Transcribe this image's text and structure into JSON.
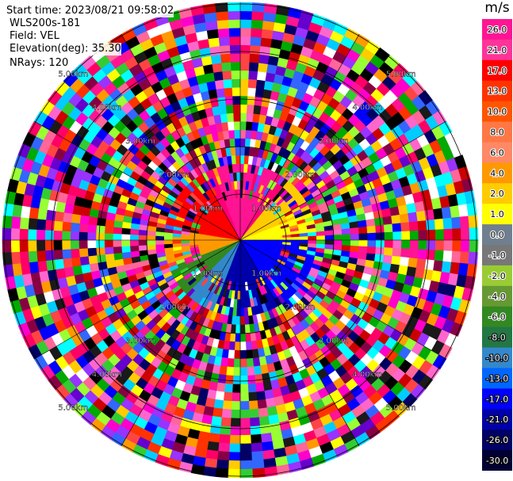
{
  "header": {
    "start_time": "Start time: 2023/08/21 09:58:02",
    "instrument": "WLS200s-181",
    "field": "Field: VEL",
    "elevation": "Elevation(deg): 35.30",
    "nrays": "NRays: 120"
  },
  "colorbar": {
    "unit": "m/s",
    "ticks": [
      "26.0",
      "21.0",
      "17.0",
      "13.0",
      "10.0",
      "8.0",
      "6.0",
      "4.0",
      "2.0",
      "1.0",
      "0.0",
      "-1.0",
      "-2.0",
      "-4.0",
      "-6.0",
      "-8.0",
      "-10.0",
      "-13.0",
      "-17.0",
      "-21.0",
      "-26.0",
      "-30.0"
    ],
    "colors": [
      "#ff1493",
      "#ff3399",
      "#ff0000",
      "#ff3300",
      "#ff5500",
      "#ff7744",
      "#ff8866",
      "#ff9900",
      "#ffcc00",
      "#ffff00",
      "#6f7f8f",
      "#777777",
      "#99cc33",
      "#669933",
      "#338822",
      "#227744",
      "#3388cc",
      "#0066ff",
      "#0000ff",
      "#0000aa",
      "#000066",
      "#000033"
    ]
  },
  "range_rings": {
    "labels": [
      "1.00km",
      "2.00km",
      "3.00km",
      "4.00km",
      "5.00km"
    ]
  }
}
